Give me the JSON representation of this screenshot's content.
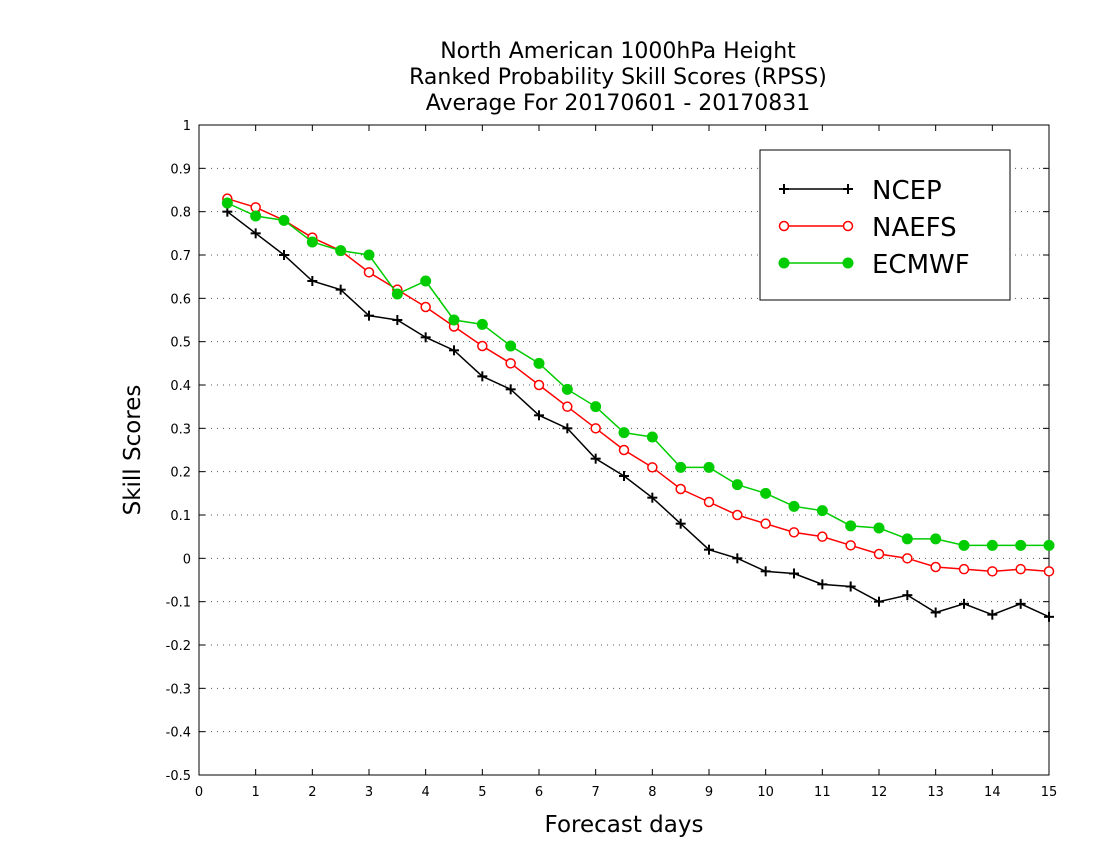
{
  "chart_data": {
    "type": "line",
    "title_lines": [
      "North American 1000hPa Height",
      "Ranked Probability Skill Scores (RPSS)",
      "Average For 20170601 - 20170831"
    ],
    "xlabel": "Forecast days",
    "ylabel": "Skill Scores",
    "xlim": [
      0,
      15
    ],
    "ylim": [
      -0.5,
      1
    ],
    "x_ticks": [
      "0",
      "1",
      "2",
      "3",
      "4",
      "5",
      "6",
      "7",
      "8",
      "9",
      "10",
      "11",
      "12",
      "13",
      "14",
      "15"
    ],
    "y_ticks": [
      "-0.5",
      "-0.4",
      "-0.3",
      "-0.2",
      "-0.1",
      "0",
      "0.1",
      "0.2",
      "0.3",
      "0.4",
      "0.5",
      "0.6",
      "0.7",
      "0.8",
      "0.9",
      "1"
    ],
    "grid": "horizontal dotted",
    "legend_position": "top-right",
    "x": [
      0.5,
      1,
      1.5,
      2,
      2.5,
      3,
      3.5,
      4,
      4.5,
      5,
      5.5,
      6,
      6.5,
      7,
      7.5,
      8,
      8.5,
      9,
      9.5,
      10,
      10.5,
      11,
      11.5,
      12,
      12.5,
      13,
      13.5,
      14,
      14.5,
      15
    ],
    "series": [
      {
        "name": "NCEP",
        "color": "#000000",
        "marker": "plus",
        "values": [
          0.8,
          0.75,
          0.7,
          0.64,
          0.62,
          0.56,
          0.55,
          0.51,
          0.48,
          0.42,
          0.39,
          0.33,
          0.3,
          0.23,
          0.19,
          0.14,
          0.08,
          0.02,
          0.0,
          -0.03,
          -0.035,
          -0.06,
          -0.065,
          -0.1,
          -0.085,
          -0.125,
          -0.105,
          -0.13,
          -0.105,
          -0.135
        ]
      },
      {
        "name": "NAEFS",
        "color": "#ff0000",
        "marker": "open-circle",
        "values": [
          0.83,
          0.81,
          0.78,
          0.74,
          0.71,
          0.66,
          0.62,
          0.58,
          0.535,
          0.49,
          0.45,
          0.4,
          0.35,
          0.3,
          0.25,
          0.21,
          0.16,
          0.13,
          0.1,
          0.08,
          0.06,
          0.05,
          0.03,
          0.01,
          0.0,
          -0.02,
          -0.025,
          -0.03,
          -0.025,
          -0.03
        ]
      },
      {
        "name": "ECMWF",
        "color": "#00cc00",
        "marker": "filled-circle",
        "values": [
          0.82,
          0.79,
          0.78,
          0.73,
          0.71,
          0.7,
          0.61,
          0.64,
          0.55,
          0.54,
          0.49,
          0.45,
          0.39,
          0.35,
          0.29,
          0.28,
          0.21,
          0.21,
          0.17,
          0.15,
          0.12,
          0.11,
          0.075,
          0.07,
          0.045,
          0.045,
          0.03,
          0.03,
          0.03,
          0.03
        ]
      }
    ]
  }
}
